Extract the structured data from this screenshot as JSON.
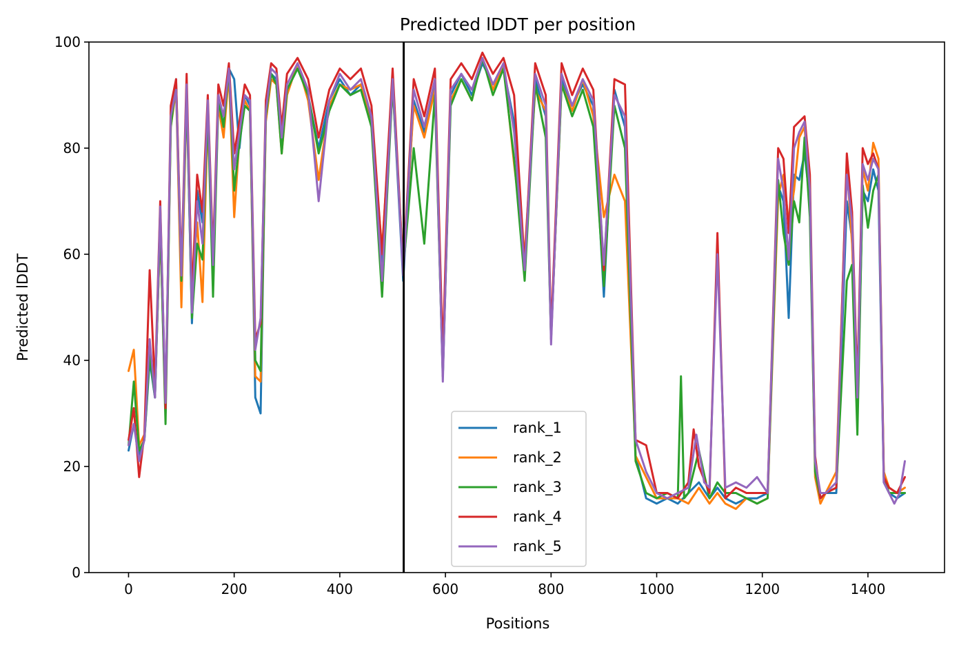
{
  "chart_data": {
    "type": "line",
    "title": "Predicted lDDT per position",
    "xlabel": "Positions",
    "ylabel": "Predicted lDDT",
    "xlim": [
      -75,
      1545
    ],
    "ylim": [
      0,
      100
    ],
    "xticks": [
      0,
      200,
      400,
      600,
      800,
      1000,
      1200,
      1400
    ],
    "yticks": [
      0,
      20,
      40,
      60,
      80,
      100
    ],
    "grid": false,
    "legend_position": "lower-center",
    "vline": {
      "x": 521,
      "color": "#000000"
    },
    "series": [
      {
        "name": "rank_1",
        "color": "#1f77b4",
        "x": [
          0,
          10,
          20,
          30,
          40,
          50,
          60,
          70,
          80,
          90,
          100,
          110,
          120,
          130,
          140,
          150,
          160,
          170,
          180,
          190,
          200,
          210,
          220,
          230,
          240,
          250,
          260,
          270,
          280,
          290,
          300,
          320,
          340,
          360,
          380,
          400,
          420,
          440,
          460,
          480,
          500,
          520,
          540,
          560,
          580,
          595,
          610,
          630,
          650,
          670,
          690,
          710,
          730,
          750,
          770,
          790,
          800,
          820,
          840,
          860,
          880,
          900,
          920,
          940,
          960,
          980,
          1000,
          1020,
          1040,
          1060,
          1080,
          1100,
          1115,
          1130,
          1150,
          1170,
          1190,
          1210,
          1230,
          1240,
          1250,
          1260,
          1270,
          1280,
          1290,
          1300,
          1310,
          1320,
          1340,
          1360,
          1370,
          1380,
          1390,
          1400,
          1410,
          1420,
          1430,
          1440,
          1455,
          1470
        ],
        "y": [
          23,
          28,
          22,
          25,
          40,
          33,
          66,
          30,
          85,
          93,
          55,
          91,
          47,
          72,
          66,
          88,
          56,
          90,
          84,
          95,
          93,
          80,
          90,
          88,
          33,
          30,
          87,
          94,
          93,
          80,
          91,
          95,
          90,
          80,
          89,
          93,
          90,
          92,
          85,
          58,
          92,
          55,
          89,
          83,
          92,
          37,
          90,
          94,
          90,
          96,
          92,
          95,
          85,
          56,
          93,
          86,
          44,
          93,
          88,
          92,
          88,
          52,
          91,
          84,
          22,
          14,
          13,
          14,
          13,
          15,
          17,
          14,
          16,
          14,
          13,
          14,
          14,
          15,
          73,
          70,
          48,
          75,
          74,
          79,
          70,
          20,
          14,
          15,
          15,
          70,
          63,
          30,
          72,
          70,
          76,
          72,
          17,
          15,
          14,
          15
        ]
      },
      {
        "name": "rank_2",
        "color": "#ff7f0e",
        "x": [
          0,
          10,
          20,
          30,
          40,
          50,
          60,
          70,
          80,
          90,
          100,
          110,
          120,
          130,
          140,
          150,
          160,
          170,
          180,
          190,
          200,
          210,
          220,
          230,
          240,
          250,
          260,
          270,
          280,
          290,
          300,
          320,
          340,
          360,
          380,
          400,
          420,
          440,
          460,
          480,
          500,
          520,
          540,
          560,
          580,
          595,
          610,
          630,
          650,
          670,
          690,
          710,
          730,
          750,
          770,
          790,
          800,
          820,
          840,
          860,
          880,
          900,
          920,
          940,
          960,
          980,
          1000,
          1020,
          1040,
          1060,
          1080,
          1100,
          1115,
          1130,
          1150,
          1170,
          1190,
          1210,
          1230,
          1240,
          1250,
          1260,
          1270,
          1280,
          1290,
          1300,
          1310,
          1320,
          1340,
          1360,
          1370,
          1380,
          1390,
          1400,
          1410,
          1420,
          1430,
          1440,
          1455,
          1470
        ],
        "y": [
          38,
          42,
          24,
          26,
          42,
          34,
          65,
          31,
          84,
          91,
          50,
          90,
          54,
          66,
          51,
          86,
          58,
          88,
          82,
          94,
          67,
          82,
          89,
          87,
          37,
          36,
          85,
          93,
          92,
          79,
          90,
          96,
          89,
          74,
          88,
          92,
          91,
          92,
          84,
          61,
          92,
          58,
          88,
          82,
          91,
          38,
          89,
          93,
          89,
          97,
          91,
          96,
          77,
          60,
          91,
          87,
          44,
          92,
          87,
          93,
          86,
          67,
          75,
          70,
          22,
          18,
          14,
          14,
          14,
          13,
          16,
          13,
          15,
          13,
          12,
          14,
          13,
          14,
          71,
          75,
          66,
          72,
          82,
          84,
          70,
          18,
          13,
          15,
          19,
          77,
          62,
          36,
          76,
          72,
          81,
          78,
          19,
          16,
          15,
          16
        ]
      },
      {
        "name": "rank_3",
        "color": "#2ca02c",
        "x": [
          0,
          10,
          20,
          30,
          40,
          50,
          60,
          70,
          80,
          90,
          100,
          110,
          120,
          130,
          140,
          150,
          160,
          170,
          180,
          190,
          200,
          210,
          220,
          230,
          240,
          250,
          260,
          270,
          280,
          290,
          300,
          320,
          340,
          360,
          380,
          400,
          420,
          440,
          460,
          480,
          500,
          520,
          540,
          560,
          580,
          595,
          610,
          630,
          650,
          670,
          690,
          710,
          730,
          750,
          770,
          790,
          800,
          820,
          840,
          860,
          880,
          900,
          920,
          940,
          960,
          980,
          1000,
          1020,
          1040,
          1046,
          1052,
          1060,
          1080,
          1100,
          1115,
          1130,
          1150,
          1170,
          1190,
          1210,
          1230,
          1240,
          1250,
          1260,
          1270,
          1280,
          1290,
          1300,
          1310,
          1320,
          1340,
          1360,
          1370,
          1380,
          1390,
          1400,
          1410,
          1420,
          1430,
          1440,
          1455,
          1470
        ],
        "y": [
          24,
          36,
          23,
          25,
          41,
          33,
          66,
          28,
          84,
          92,
          55,
          90,
          48,
          62,
          59,
          87,
          52,
          89,
          84,
          95,
          72,
          81,
          88,
          87,
          40,
          38,
          86,
          94,
          92,
          79,
          91,
          95,
          90,
          79,
          87,
          92,
          90,
          91,
          84,
          52,
          92,
          57,
          80,
          62,
          90,
          37,
          88,
          93,
          89,
          97,
          90,
          95,
          78,
          55,
          92,
          82,
          44,
          92,
          86,
          91,
          84,
          54,
          88,
          80,
          21,
          15,
          14,
          15,
          14,
          37,
          14,
          15,
          23,
          14,
          17,
          15,
          15,
          14,
          13,
          14,
          74,
          64,
          58,
          70,
          66,
          82,
          67,
          19,
          14,
          15,
          16,
          55,
          58,
          26,
          73,
          65,
          72,
          75,
          18,
          15,
          15,
          15
        ]
      },
      {
        "name": "rank_4",
        "color": "#d62728",
        "x": [
          0,
          10,
          20,
          30,
          40,
          50,
          60,
          70,
          80,
          90,
          100,
          110,
          120,
          130,
          140,
          150,
          160,
          170,
          180,
          190,
          200,
          210,
          220,
          230,
          240,
          250,
          260,
          270,
          280,
          290,
          300,
          320,
          340,
          360,
          380,
          400,
          420,
          440,
          460,
          480,
          500,
          520,
          540,
          560,
          580,
          595,
          610,
          630,
          650,
          670,
          690,
          710,
          730,
          750,
          770,
          790,
          800,
          820,
          840,
          860,
          880,
          900,
          920,
          940,
          960,
          980,
          1000,
          1020,
          1040,
          1060,
          1070,
          1080,
          1100,
          1115,
          1130,
          1150,
          1170,
          1190,
          1210,
          1230,
          1240,
          1250,
          1260,
          1270,
          1280,
          1290,
          1300,
          1310,
          1320,
          1340,
          1360,
          1370,
          1380,
          1390,
          1400,
          1410,
          1420,
          1430,
          1440,
          1455,
          1470
        ],
        "y": [
          25,
          31,
          18,
          26,
          57,
          35,
          70,
          31,
          88,
          93,
          57,
          94,
          52,
          75,
          68,
          90,
          60,
          92,
          88,
          96,
          79,
          85,
          92,
          90,
          44,
          47,
          89,
          96,
          95,
          84,
          94,
          97,
          93,
          82,
          91,
          95,
          93,
          95,
          88,
          60,
          95,
          57,
          93,
          86,
          95,
          41,
          93,
          96,
          93,
          98,
          94,
          97,
          90,
          58,
          96,
          90,
          45,
          96,
          90,
          95,
          91,
          57,
          93,
          92,
          25,
          24,
          15,
          15,
          14,
          17,
          27,
          20,
          15,
          64,
          14,
          16,
          15,
          15,
          15,
          80,
          78,
          64,
          84,
          85,
          86,
          75,
          22,
          14,
          15,
          16,
          79,
          68,
          35,
          80,
          77,
          79,
          76,
          18,
          16,
          15,
          18
        ]
      },
      {
        "name": "rank_5",
        "color": "#9467bd",
        "x": [
          0,
          10,
          20,
          30,
          40,
          50,
          60,
          70,
          80,
          90,
          100,
          110,
          120,
          130,
          140,
          150,
          160,
          170,
          180,
          190,
          200,
          210,
          220,
          230,
          240,
          250,
          260,
          270,
          280,
          290,
          300,
          320,
          340,
          360,
          380,
          400,
          420,
          440,
          460,
          480,
          500,
          520,
          540,
          560,
          580,
          595,
          610,
          630,
          650,
          670,
          690,
          710,
          730,
          750,
          770,
          790,
          800,
          820,
          840,
          860,
          880,
          900,
          920,
          940,
          960,
          980,
          1000,
          1020,
          1040,
          1060,
          1075,
          1090,
          1100,
          1115,
          1130,
          1150,
          1170,
          1190,
          1210,
          1230,
          1240,
          1250,
          1260,
          1270,
          1280,
          1290,
          1300,
          1310,
          1320,
          1340,
          1360,
          1370,
          1380,
          1390,
          1400,
          1410,
          1420,
          1430,
          1440,
          1450,
          1460,
          1470
        ],
        "y": [
          24,
          28,
          21,
          25,
          44,
          33,
          69,
          32,
          86,
          91,
          56,
          92,
          49,
          70,
          62,
          89,
          58,
          90,
          86,
          95,
          76,
          83,
          90,
          89,
          42,
          48,
          87,
          95,
          94,
          82,
          92,
          96,
          91,
          70,
          89,
          94,
          91,
          93,
          86,
          55,
          93,
          56,
          91,
          84,
          93,
          36,
          91,
          94,
          91,
          97,
          92,
          96,
          83,
          57,
          94,
          88,
          43,
          94,
          88,
          93,
          89,
          58,
          90,
          86,
          25,
          19,
          15,
          14,
          15,
          16,
          26,
          17,
          16,
          60,
          16,
          17,
          16,
          18,
          15,
          78,
          72,
          59,
          80,
          83,
          85,
          72,
          21,
          15,
          15,
          17,
          75,
          66,
          33,
          77,
          74,
          78,
          76,
          17,
          15,
          13,
          15,
          21
        ]
      }
    ]
  }
}
